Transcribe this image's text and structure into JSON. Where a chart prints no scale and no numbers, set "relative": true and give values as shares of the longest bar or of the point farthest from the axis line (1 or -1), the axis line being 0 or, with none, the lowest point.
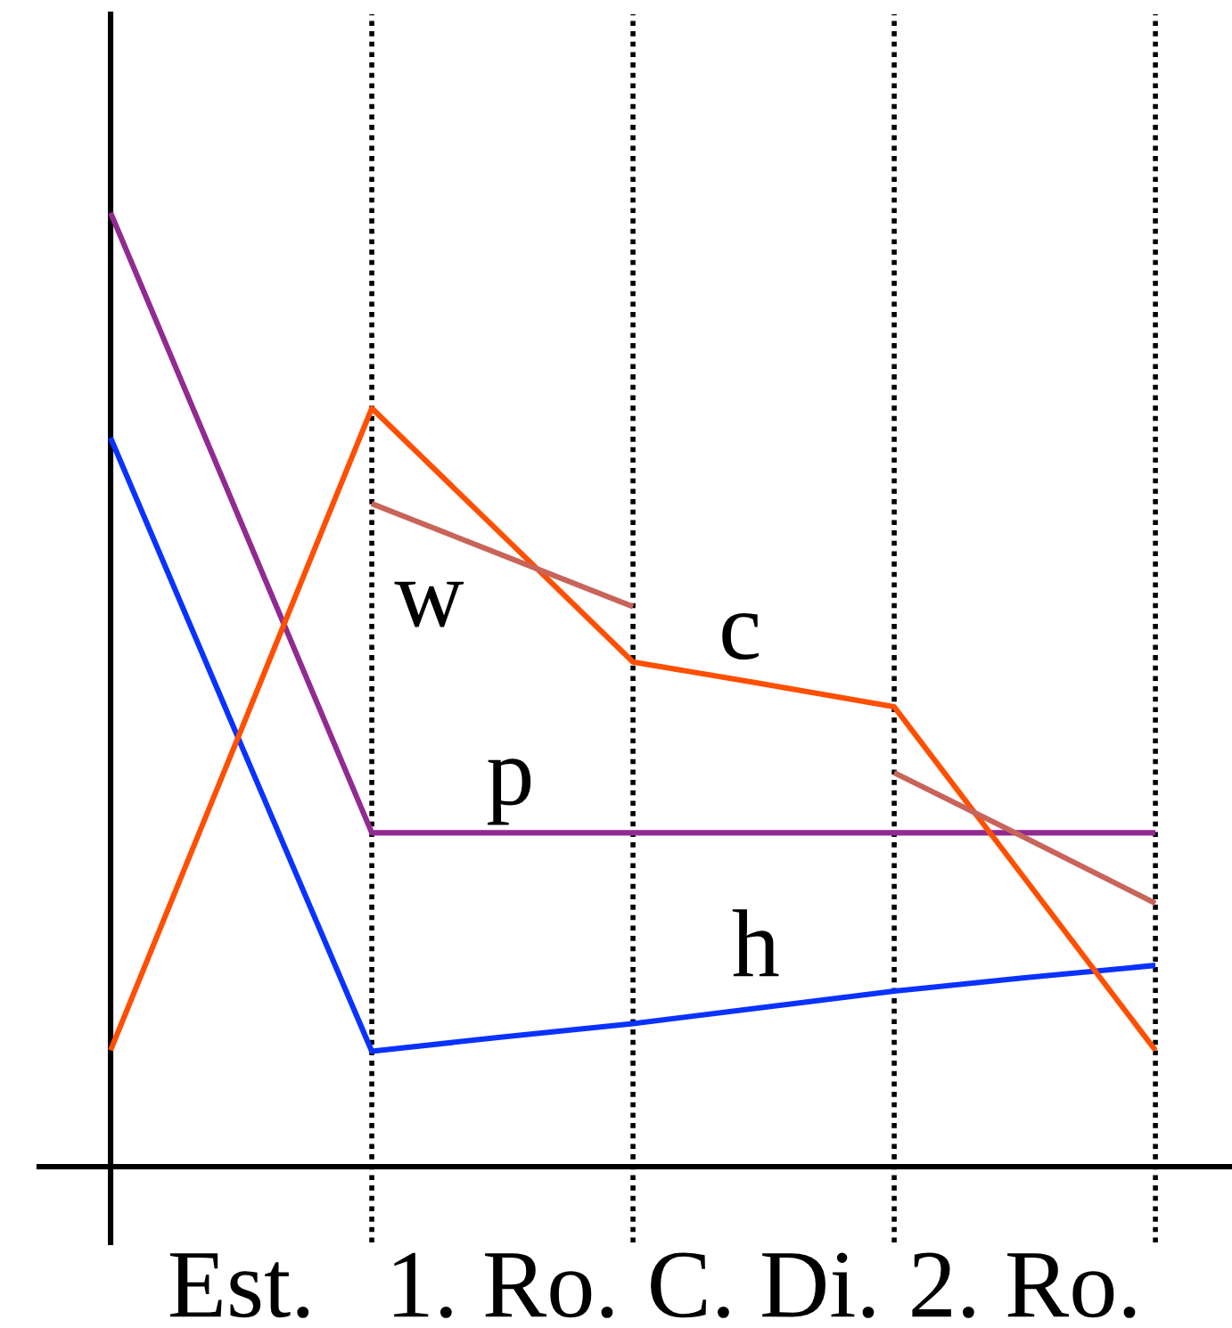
{
  "chart_data": {
    "type": "line",
    "relative": true,
    "grid": "x",
    "categories": [
      null,
      "Est.",
      null,
      "1. Ro.",
      null,
      "C. Di.",
      null,
      "2. Ro.",
      null
    ],
    "series": [
      {
        "name": "p",
        "color": "#912a91",
        "values": [
          1,
          0.675,
          0.35,
          0.35,
          0.35,
          0.35,
          0.35,
          0.35,
          0.35
        ]
      },
      {
        "name": "h",
        "color": "#0a32ff",
        "values": [
          0.764,
          0.442,
          0.121,
          0.136,
          0.15,
          0.167,
          0.184,
          0.198,
          0.211
        ]
      },
      {
        "name": "c",
        "color": "#ff4f00",
        "values": [
          0.122,
          0.458,
          0.795,
          0.662,
          0.529,
          0.506,
          0.482,
          0.302,
          0.122
        ]
      },
      {
        "name": "w",
        "color": "#c8645a",
        "values": [
          null,
          null,
          0.695,
          0.641,
          0.587,
          null,
          0.413,
          0.345,
          0.276
        ]
      }
    ]
  }
}
